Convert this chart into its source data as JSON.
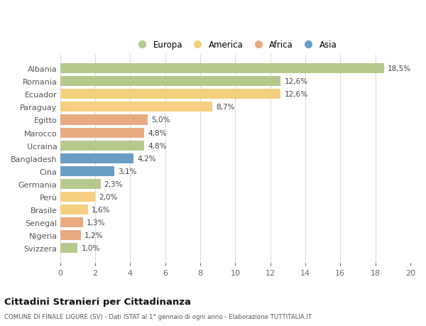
{
  "categories": [
    "Albania",
    "Romania",
    "Ecuador",
    "Paraguay",
    "Egitto",
    "Marocco",
    "Ucraina",
    "Bangladesh",
    "Cina",
    "Germania",
    "Perù",
    "Brasile",
    "Senegal",
    "Nigeria",
    "Svizzera"
  ],
  "values": [
    18.5,
    12.6,
    12.6,
    8.7,
    5.0,
    4.8,
    4.8,
    4.2,
    3.1,
    2.3,
    2.0,
    1.6,
    1.3,
    1.2,
    1.0
  ],
  "labels": [
    "18,5%",
    "12,6%",
    "12,6%",
    "8,7%",
    "5,0%",
    "4,8%",
    "4,8%",
    "4,2%",
    "3,1%",
    "2,3%",
    "2,0%",
    "1,6%",
    "1,3%",
    "1,2%",
    "1,0%"
  ],
  "continents": [
    "Europa",
    "Europa",
    "America",
    "America",
    "Africa",
    "Africa",
    "Europa",
    "Asia",
    "Asia",
    "Europa",
    "America",
    "America",
    "Africa",
    "Africa",
    "Europa"
  ],
  "colors": {
    "Europa": "#b5c98e",
    "America": "#f5d080",
    "Africa": "#e8aa80",
    "Asia": "#6b9dc2"
  },
  "legend_order": [
    "Europa",
    "America",
    "Africa",
    "Asia"
  ],
  "title": "Cittadini Stranieri per Cittadinanza",
  "subtitle": "COMUNE DI FINALE LIGURE (SV) - Dati ISTAT al 1° gennaio di ogni anno - Elaborazione TUTTITALIA.IT",
  "xlim": [
    0,
    20
  ],
  "xticks": [
    0,
    2,
    4,
    6,
    8,
    10,
    12,
    14,
    16,
    18,
    20
  ],
  "bg_color": "#ffffff",
  "grid_color": "#dddddd",
  "bar_height": 0.78
}
